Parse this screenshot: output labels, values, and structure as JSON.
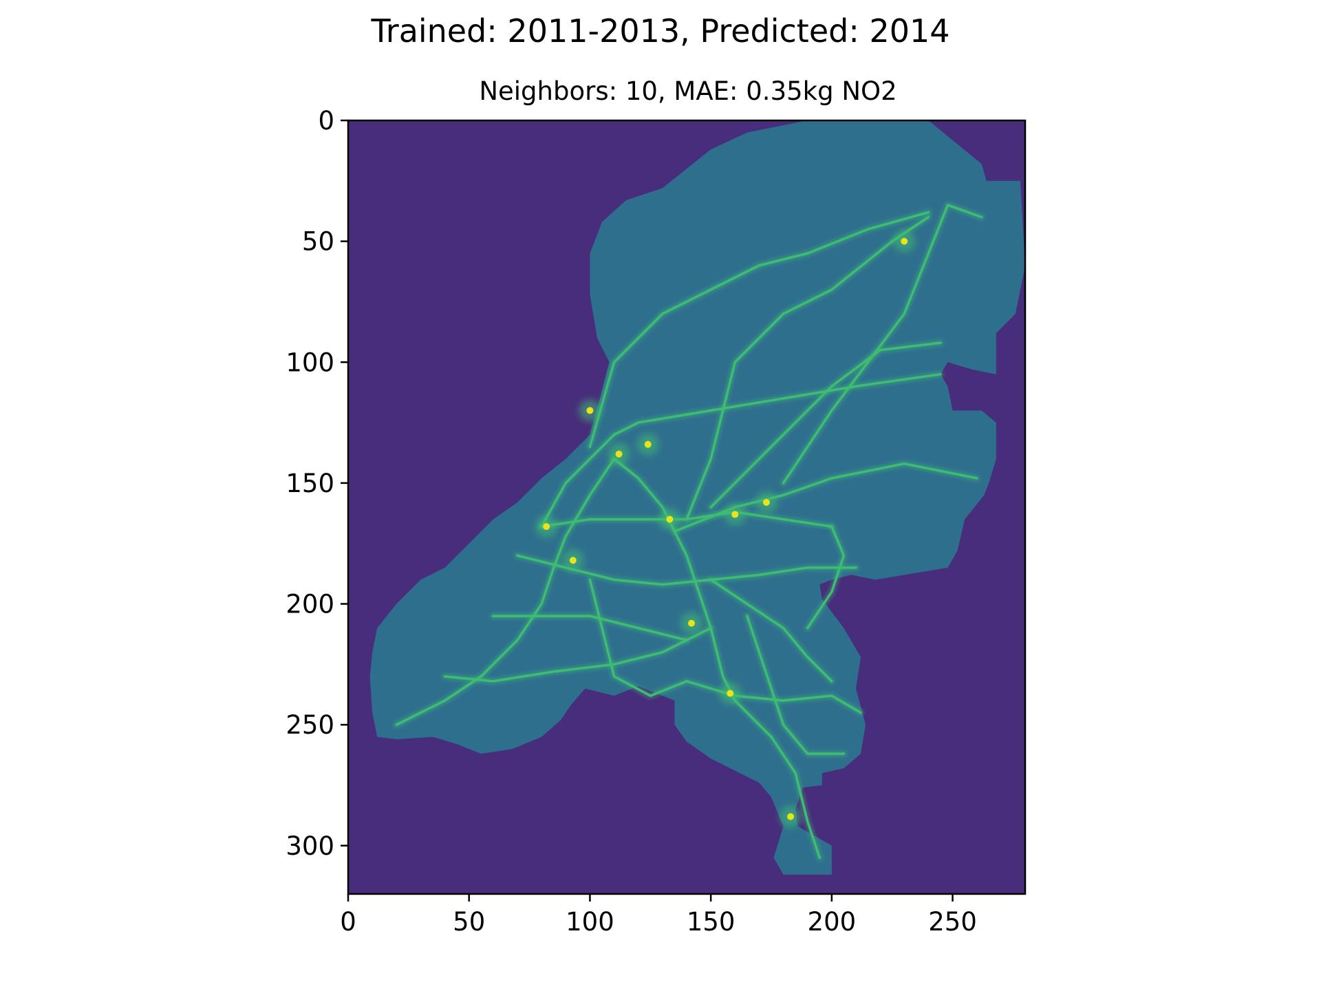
{
  "chart_data": {
    "type": "heatmap",
    "title": "Trained: 2011-2013, Predicted: 2014",
    "subtitle": "Neighbors: 10, MAE: 0.35kg NO2",
    "xlabel": "",
    "ylabel": "",
    "xlim": [
      0,
      280
    ],
    "ylim": [
      320,
      0
    ],
    "x_ticks": [
      0,
      50,
      100,
      150,
      200,
      250
    ],
    "y_ticks": [
      0,
      50,
      100,
      150,
      200,
      250,
      300
    ],
    "colormap": "viridis",
    "background_color": "#472d7b",
    "land_color": "#2f6f8e",
    "road_color": "#3fbc73",
    "hotspot_color": "#e8e419",
    "grid": false,
    "land_outline": [
      [
        190,
        0
      ],
      [
        240,
        0
      ],
      [
        262,
        18
      ],
      [
        264,
        25
      ],
      [
        278,
        25
      ],
      [
        280,
        60
      ],
      [
        276,
        80
      ],
      [
        268,
        88
      ],
      [
        268,
        105
      ],
      [
        258,
        103
      ],
      [
        248,
        100
      ],
      [
        245,
        105
      ],
      [
        248,
        110
      ],
      [
        250,
        120
      ],
      [
        262,
        120
      ],
      [
        268,
        125
      ],
      [
        268,
        140
      ],
      [
        265,
        150
      ],
      [
        263,
        155
      ],
      [
        255,
        165
      ],
      [
        252,
        178
      ],
      [
        248,
        185
      ],
      [
        230,
        188
      ],
      [
        218,
        190
      ],
      [
        208,
        188
      ],
      [
        200,
        190
      ],
      [
        195,
        192
      ],
      [
        196,
        198
      ],
      [
        205,
        210
      ],
      [
        212,
        222
      ],
      [
        210,
        235
      ],
      [
        214,
        250
      ],
      [
        212,
        262
      ],
      [
        205,
        268
      ],
      [
        196,
        270
      ],
      [
        196,
        275
      ],
      [
        188,
        276
      ],
      [
        185,
        285
      ],
      [
        186,
        292
      ],
      [
        200,
        300
      ],
      [
        200,
        312
      ],
      [
        180,
        312
      ],
      [
        176,
        305
      ],
      [
        180,
        292
      ],
      [
        175,
        280
      ],
      [
        170,
        274
      ],
      [
        162,
        270
      ],
      [
        150,
        264
      ],
      [
        140,
        257
      ],
      [
        135,
        250
      ],
      [
        135,
        240
      ],
      [
        120,
        234
      ],
      [
        110,
        238
      ],
      [
        98,
        235
      ],
      [
        92,
        242
      ],
      [
        88,
        248
      ],
      [
        80,
        255
      ],
      [
        68,
        260
      ],
      [
        55,
        262
      ],
      [
        45,
        258
      ],
      [
        35,
        255
      ],
      [
        20,
        256
      ],
      [
        12,
        255
      ],
      [
        10,
        245
      ],
      [
        9,
        230
      ],
      [
        10,
        220
      ],
      [
        12,
        210
      ],
      [
        20,
        200
      ],
      [
        30,
        190
      ],
      [
        40,
        185
      ],
      [
        50,
        175
      ],
      [
        60,
        165
      ],
      [
        70,
        158
      ],
      [
        80,
        148
      ],
      [
        90,
        140
      ],
      [
        100,
        130
      ],
      [
        105,
        112
      ],
      [
        108,
        100
      ],
      [
        103,
        90
      ],
      [
        100,
        72
      ],
      [
        100,
        55
      ],
      [
        105,
        42
      ],
      [
        115,
        33
      ],
      [
        130,
        28
      ],
      [
        140,
        20
      ],
      [
        150,
        12
      ],
      [
        165,
        5
      ],
      [
        180,
        2
      ]
    ],
    "roads": [
      [
        [
          70,
          180
        ],
        [
          90,
          185
        ],
        [
          110,
          190
        ],
        [
          130,
          192
        ],
        [
          150,
          190
        ],
        [
          170,
          188
        ],
        [
          190,
          185
        ],
        [
          210,
          185
        ]
      ],
      [
        [
          80,
          168
        ],
        [
          100,
          165
        ],
        [
          120,
          165
        ],
        [
          140,
          165
        ],
        [
          160,
          162
        ],
        [
          180,
          165
        ],
        [
          200,
          168
        ]
      ],
      [
        [
          110,
          140
        ],
        [
          120,
          148
        ],
        [
          130,
          160
        ],
        [
          135,
          170
        ],
        [
          140,
          180
        ],
        [
          145,
          195
        ],
        [
          150,
          210
        ],
        [
          155,
          230
        ],
        [
          160,
          240
        ],
        [
          175,
          255
        ],
        [
          185,
          270
        ],
        [
          190,
          290
        ],
        [
          195,
          305
        ]
      ],
      [
        [
          135,
          170
        ],
        [
          160,
          160
        ],
        [
          180,
          155
        ],
        [
          200,
          148
        ],
        [
          230,
          142
        ],
        [
          260,
          148
        ]
      ],
      [
        [
          180,
          150
        ],
        [
          200,
          120
        ],
        [
          215,
          100
        ],
        [
          230,
          80
        ],
        [
          240,
          55
        ],
        [
          248,
          35
        ],
        [
          262,
          40
        ]
      ],
      [
        [
          150,
          160
        ],
        [
          180,
          130
        ],
        [
          200,
          110
        ],
        [
          220,
          95
        ],
        [
          245,
          92
        ]
      ],
      [
        [
          140,
          165
        ],
        [
          150,
          140
        ],
        [
          160,
          100
        ],
        [
          180,
          80
        ],
        [
          200,
          70
        ],
        [
          225,
          50
        ],
        [
          240,
          40
        ]
      ],
      [
        [
          100,
          135
        ],
        [
          110,
          100
        ],
        [
          130,
          80
        ],
        [
          150,
          70
        ],
        [
          170,
          60
        ],
        [
          190,
          55
        ],
        [
          215,
          45
        ],
        [
          240,
          38
        ]
      ],
      [
        [
          80,
          168
        ],
        [
          90,
          150
        ],
        [
          100,
          140
        ],
        [
          110,
          130
        ],
        [
          120,
          125
        ],
        [
          150,
          120
        ],
        [
          180,
          115
        ],
        [
          210,
          110
        ],
        [
          245,
          105
        ]
      ],
      [
        [
          110,
          140
        ],
        [
          100,
          155
        ],
        [
          90,
          172
        ],
        [
          85,
          185
        ],
        [
          80,
          200
        ],
        [
          70,
          215
        ],
        [
          55,
          230
        ],
        [
          40,
          240
        ],
        [
          20,
          250
        ]
      ],
      [
        [
          100,
          190
        ],
        [
          105,
          210
        ],
        [
          110,
          230
        ],
        [
          125,
          238
        ],
        [
          140,
          232
        ],
        [
          160,
          238
        ],
        [
          180,
          240
        ],
        [
          200,
          238
        ],
        [
          212,
          245
        ]
      ],
      [
        [
          150,
          190
        ],
        [
          165,
          200
        ],
        [
          180,
          210
        ],
        [
          190,
          222
        ],
        [
          200,
          232
        ]
      ],
      [
        [
          150,
          210
        ],
        [
          130,
          220
        ],
        [
          110,
          225
        ],
        [
          85,
          228
        ],
        [
          60,
          232
        ],
        [
          40,
          230
        ]
      ],
      [
        [
          200,
          168
        ],
        [
          205,
          180
        ],
        [
          200,
          195
        ],
        [
          190,
          210
        ]
      ],
      [
        [
          165,
          205
        ],
        [
          170,
          220
        ],
        [
          175,
          235
        ],
        [
          180,
          250
        ],
        [
          190,
          262
        ],
        [
          205,
          262
        ]
      ],
      [
        [
          60,
          205
        ],
        [
          80,
          205
        ],
        [
          100,
          205
        ],
        [
          120,
          210
        ],
        [
          140,
          215
        ]
      ]
    ],
    "hotspots": [
      [
        112,
        138
      ],
      [
        100,
        120
      ],
      [
        82,
        168
      ],
      [
        93,
        182
      ],
      [
        133,
        165
      ],
      [
        142,
        208
      ],
      [
        158,
        237
      ],
      [
        183,
        288
      ],
      [
        173,
        158
      ],
      [
        160,
        163
      ],
      [
        124,
        134
      ],
      [
        230,
        50
      ]
    ],
    "annotations": []
  }
}
